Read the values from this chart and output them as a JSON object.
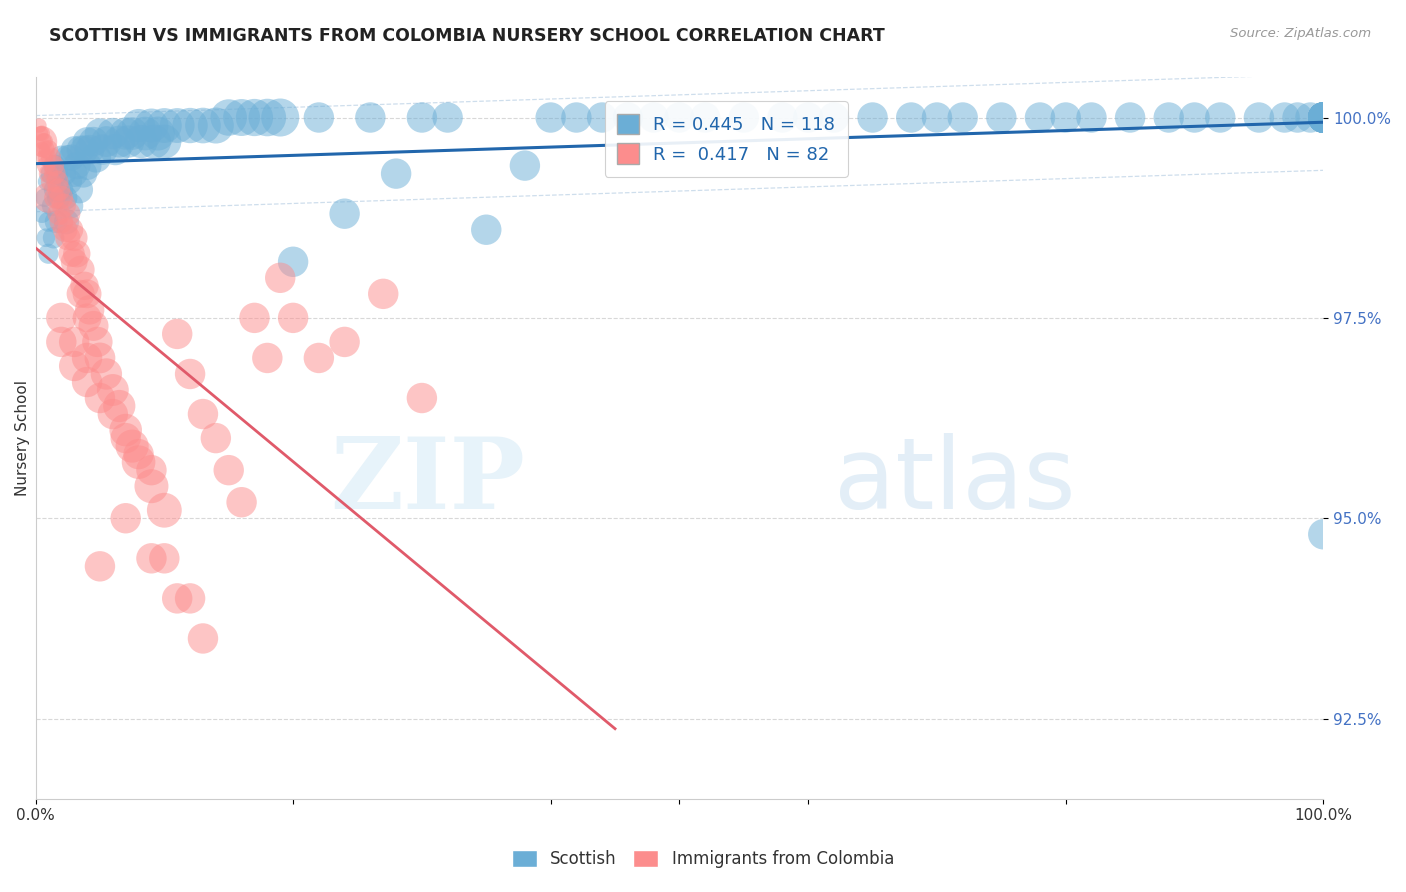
{
  "title": "SCOTTISH VS IMMIGRANTS FROM COLOMBIA NURSERY SCHOOL CORRELATION CHART",
  "source": "Source: ZipAtlas.com",
  "ylabel": "Nursery School",
  "legend_label_blue": "Scottish",
  "legend_label_pink": "Immigrants from Colombia",
  "R_blue": 0.445,
  "N_blue": 118,
  "R_pink": 0.417,
  "N_pink": 82,
  "xlim": [
    0.0,
    1.0
  ],
  "ylim": [
    0.915,
    1.005
  ],
  "yticks": [
    0.925,
    0.95,
    0.975,
    1.0
  ],
  "ytick_labels": [
    "92.5%",
    "95.0%",
    "97.5%",
    "100.0%"
  ],
  "background_color": "#ffffff",
  "blue_color": "#6baed6",
  "pink_color": "#fc8d8d",
  "trendline_blue": "#2166ac",
  "trendline_pink": "#e05a6a",
  "watermark_zip": "ZIP",
  "watermark_atlas": "atlas",
  "scatter_blue_x": [
    0.005,
    0.007,
    0.008,
    0.009,
    0.01,
    0.01,
    0.012,
    0.013,
    0.014,
    0.015,
    0.015,
    0.016,
    0.017,
    0.018,
    0.02,
    0.02,
    0.022,
    0.023,
    0.024,
    0.025,
    0.026,
    0.027,
    0.028,
    0.03,
    0.03,
    0.032,
    0.034,
    0.035,
    0.037,
    0.038,
    0.04,
    0.04,
    0.042,
    0.045,
    0.047,
    0.05,
    0.052,
    0.055,
    0.06,
    0.062,
    0.065,
    0.07,
    0.072,
    0.075,
    0.08,
    0.082,
    0.085,
    0.09,
    0.092,
    0.095,
    0.1,
    0.1,
    0.11,
    0.12,
    0.13,
    0.14,
    0.15,
    0.16,
    0.17,
    0.18,
    0.19,
    0.2,
    0.22,
    0.24,
    0.26,
    0.28,
    0.3,
    0.32,
    0.35,
    0.38,
    0.4,
    0.42,
    0.44,
    0.46,
    0.48,
    0.5,
    0.52,
    0.55,
    0.58,
    0.6,
    0.62,
    0.65,
    0.68,
    0.7,
    0.72,
    0.75,
    0.78,
    0.8,
    0.82,
    0.85,
    0.88,
    0.9,
    0.92,
    0.95,
    0.97,
    0.98,
    0.99,
    1.0,
    1.0,
    1.0,
    1.0,
    1.0,
    1.0,
    1.0,
    1.0,
    1.0,
    1.0,
    1.0,
    1.0,
    1.0,
    1.0,
    1.0,
    1.0,
    1.0,
    1.0,
    1.0,
    1.0,
    1.0
  ],
  "scatter_blue_y": [
    0.988,
    0.99,
    0.985,
    0.992,
    0.987,
    0.983,
    0.993,
    0.989,
    0.985,
    0.994,
    0.991,
    0.987,
    0.993,
    0.99,
    0.995,
    0.991,
    0.993,
    0.99,
    0.987,
    0.995,
    0.992,
    0.989,
    0.995,
    0.996,
    0.993,
    0.994,
    0.991,
    0.996,
    0.993,
    0.996,
    0.997,
    0.994,
    0.996,
    0.997,
    0.995,
    0.998,
    0.996,
    0.997,
    0.998,
    0.996,
    0.997,
    0.998,
    0.997,
    0.998,
    0.999,
    0.997,
    0.998,
    0.999,
    0.997,
    0.998,
    0.999,
    0.997,
    0.999,
    0.999,
    0.999,
    0.999,
    1.0,
    1.0,
    1.0,
    1.0,
    1.0,
    0.982,
    1.0,
    0.988,
    1.0,
    0.993,
    1.0,
    1.0,
    0.986,
    0.994,
    1.0,
    1.0,
    1.0,
    1.0,
    1.0,
    1.0,
    1.0,
    1.0,
    1.0,
    1.0,
    1.0,
    1.0,
    1.0,
    1.0,
    1.0,
    1.0,
    1.0,
    1.0,
    1.0,
    1.0,
    1.0,
    1.0,
    1.0,
    1.0,
    1.0,
    1.0,
    1.0,
    1.0,
    1.0,
    1.0,
    1.0,
    1.0,
    1.0,
    1.0,
    1.0,
    1.0,
    1.0,
    1.0,
    1.0,
    1.0,
    1.0,
    1.0,
    1.0,
    1.0,
    1.0,
    1.0,
    1.0,
    0.948
  ],
  "scatter_blue_s": [
    30,
    30,
    30,
    30,
    35,
    35,
    38,
    38,
    40,
    42,
    42,
    45,
    45,
    48,
    50,
    50,
    52,
    52,
    55,
    55,
    58,
    58,
    60,
    62,
    62,
    65,
    65,
    68,
    68,
    70,
    72,
    72,
    75,
    75,
    78,
    80,
    80,
    82,
    85,
    85,
    88,
    90,
    90,
    92,
    95,
    95,
    98,
    100,
    100,
    100,
    105,
    100,
    105,
    108,
    110,
    112,
    115,
    118,
    120,
    122,
    125,
    80,
    80,
    80,
    80,
    80,
    80,
    80,
    80,
    80,
    80,
    80,
    80,
    80,
    80,
    80,
    80,
    80,
    80,
    80,
    80,
    80,
    80,
    80,
    80,
    80,
    80,
    80,
    80,
    80,
    80,
    80,
    80,
    80,
    80,
    80,
    80,
    80,
    80,
    80,
    80,
    80,
    80,
    80,
    80,
    80,
    80,
    80,
    80,
    80,
    80,
    80,
    80,
    80,
    80,
    80,
    80,
    80
  ],
  "scatter_pink_x": [
    0.003,
    0.004,
    0.005,
    0.005,
    0.006,
    0.007,
    0.007,
    0.008,
    0.008,
    0.009,
    0.01,
    0.01,
    0.012,
    0.012,
    0.014,
    0.015,
    0.015,
    0.017,
    0.018,
    0.018,
    0.02,
    0.02,
    0.022,
    0.023,
    0.025,
    0.025,
    0.027,
    0.028,
    0.03,
    0.03,
    0.032,
    0.035,
    0.035,
    0.038,
    0.04,
    0.04,
    0.042,
    0.045,
    0.048,
    0.05,
    0.055,
    0.06,
    0.065,
    0.07,
    0.075,
    0.08,
    0.09,
    0.1,
    0.11,
    0.12,
    0.13,
    0.14,
    0.15,
    0.16,
    0.17,
    0.18,
    0.19,
    0.2,
    0.22,
    0.24,
    0.27,
    0.3,
    0.05,
    0.07,
    0.09,
    0.11,
    0.13,
    0.02,
    0.02,
    0.03,
    0.03,
    0.04,
    0.04,
    0.05,
    0.06,
    0.07,
    0.08,
    0.09,
    0.1,
    0.12,
    0.01,
    0.005
  ],
  "scatter_pink_y": [
    0.999,
    0.998,
    0.998,
    0.996,
    0.997,
    0.997,
    0.995,
    0.996,
    0.994,
    0.995,
    0.996,
    0.993,
    0.995,
    0.992,
    0.994,
    0.993,
    0.99,
    0.992,
    0.991,
    0.988,
    0.99,
    0.987,
    0.989,
    0.986,
    0.988,
    0.985,
    0.986,
    0.983,
    0.985,
    0.982,
    0.983,
    0.981,
    0.978,
    0.979,
    0.978,
    0.975,
    0.976,
    0.974,
    0.972,
    0.97,
    0.968,
    0.966,
    0.964,
    0.961,
    0.959,
    0.957,
    0.954,
    0.951,
    0.973,
    0.968,
    0.963,
    0.96,
    0.956,
    0.952,
    0.975,
    0.97,
    0.98,
    0.975,
    0.97,
    0.972,
    0.978,
    0.965,
    0.944,
    0.95,
    0.945,
    0.94,
    0.935,
    0.975,
    0.972,
    0.972,
    0.969,
    0.97,
    0.967,
    0.965,
    0.963,
    0.96,
    0.958,
    0.956,
    0.945,
    0.94,
    0.99,
    0.997
  ],
  "scatter_pink_s": [
    18,
    20,
    22,
    22,
    25,
    25,
    25,
    28,
    28,
    30,
    32,
    32,
    35,
    35,
    38,
    40,
    40,
    42,
    45,
    45,
    48,
    48,
    50,
    52,
    55,
    55,
    58,
    60,
    62,
    62,
    65,
    68,
    68,
    70,
    72,
    72,
    75,
    78,
    80,
    82,
    85,
    88,
    90,
    92,
    95,
    98,
    100,
    105,
    80,
    80,
    80,
    80,
    80,
    80,
    80,
    80,
    80,
    80,
    80,
    80,
    80,
    80,
    80,
    80,
    80,
    80,
    80,
    80,
    80,
    80,
    80,
    80,
    80,
    80,
    80,
    80,
    80,
    80,
    80,
    80,
    80,
    80
  ]
}
